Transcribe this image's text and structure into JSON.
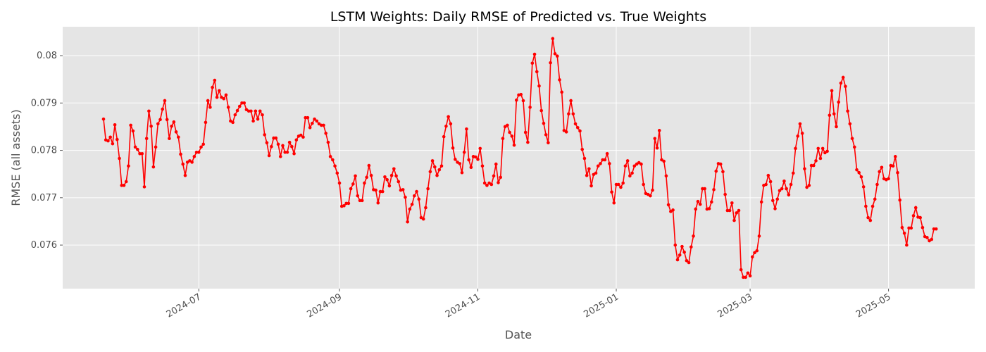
{
  "chart_data": {
    "type": "line",
    "title": "LSTM Weights: Daily RMSE of Predicted vs. True Weights",
    "x_label": "Date",
    "y_label": "RMSE (all assets)",
    "color": "#ff0000",
    "grid": true,
    "xlim": [
      19845,
      20247
    ],
    "xticks": [
      {
        "value": 19905,
        "label": "2024-07"
      },
      {
        "value": 19967,
        "label": "2024-09"
      },
      {
        "value": 20028,
        "label": "2024-11"
      },
      {
        "value": 20089,
        "label": "2025-01"
      },
      {
        "value": 20148,
        "label": "2025-03"
      },
      {
        "value": 20209,
        "label": "2025-05"
      }
    ],
    "ylim": [
      0.07508,
      0.08061
    ],
    "yticks": [
      0.076,
      0.077,
      0.078,
      0.079,
      0.08
    ],
    "x": [
      19863,
      19864,
      19865,
      19866,
      19867,
      19868,
      19869,
      19870,
      19871,
      19872,
      19873,
      19874,
      19875,
      19876,
      19877,
      19878,
      19879,
      19880,
      19881,
      19882,
      19883,
      19884,
      19885,
      19886,
      19887,
      19888,
      19889,
      19890,
      19891,
      19892,
      19893,
      19894,
      19895,
      19896,
      19897,
      19898,
      19899,
      19900,
      19901,
      19902,
      19903,
      19904,
      19905,
      19906,
      19907,
      19908,
      19909,
      19910,
      19911,
      19912,
      19913,
      19914,
      19915,
      19916,
      19917,
      19918,
      19919,
      19920,
      19921,
      19922,
      19923,
      19924,
      19925,
      19926,
      19927,
      19928,
      19929,
      19930,
      19931,
      19932,
      19933,
      19934,
      19935,
      19936,
      19937,
      19938,
      19939,
      19940,
      19941,
      19942,
      19943,
      19944,
      19945,
      19946,
      19947,
      19948,
      19949,
      19950,
      19951,
      19952,
      19953,
      19954,
      19955,
      19956,
      19957,
      19958,
      19959,
      19960,
      19961,
      19962,
      19963,
      19964,
      19965,
      19966,
      19967,
      19968,
      19969,
      19970,
      19971,
      19972,
      19973,
      19974,
      19975,
      19976,
      19977,
      19978,
      19979,
      19980,
      19981,
      19982,
      19983,
      19984,
      19985,
      19986,
      19987,
      19988,
      19989,
      19990,
      19991,
      19992,
      19993,
      19994,
      19995,
      19996,
      19997,
      19998,
      19999,
      20000,
      20001,
      20002,
      20003,
      20004,
      20005,
      20006,
      20007,
      20008,
      20009,
      20010,
      20011,
      20012,
      20013,
      20014,
      20015,
      20016,
      20017,
      20018,
      20019,
      20020,
      20021,
      20022,
      20023,
      20024,
      20025,
      20026,
      20027,
      20028,
      20029,
      20030,
      20031,
      20032,
      20033,
      20034,
      20035,
      20036,
      20037,
      20038,
      20039,
      20040,
      20041,
      20042,
      20043,
      20044,
      20045,
      20046,
      20047,
      20048,
      20049,
      20050,
      20051,
      20052,
      20053,
      20054,
      20055,
      20056,
      20057,
      20058,
      20059,
      20060,
      20061,
      20062,
      20063,
      20064,
      20065,
      20066,
      20067,
      20068,
      20069,
      20070,
      20071,
      20072,
      20073,
      20074,
      20075,
      20076,
      20077,
      20078,
      20079,
      20080,
      20081,
      20082,
      20083,
      20084,
      20085,
      20086,
      20087,
      20088,
      20089,
      20090,
      20091,
      20092,
      20093,
      20094,
      20095,
      20096,
      20097,
      20098,
      20099,
      20100,
      20101,
      20102,
      20103,
      20104,
      20105,
      20106,
      20107,
      20108,
      20109,
      20110,
      20111,
      20112,
      20113,
      20114,
      20115,
      20116,
      20117,
      20118,
      20119,
      20120,
      20121,
      20122,
      20123,
      20124,
      20125,
      20126,
      20127,
      20128,
      20129,
      20130,
      20131,
      20132,
      20133,
      20134,
      20135,
      20136,
      20137,
      20138,
      20139,
      20140,
      20141,
      20142,
      20143,
      20144,
      20145,
      20146,
      20147,
      20148,
      20149,
      20150,
      20151,
      20152,
      20153,
      20154,
      20155,
      20156,
      20157,
      20158,
      20159,
      20160,
      20161,
      20162,
      20163,
      20164,
      20165,
      20166,
      20167,
      20168,
      20169,
      20170,
      20171,
      20172,
      20173,
      20174,
      20175,
      20176,
      20177,
      20178,
      20179,
      20180,
      20181,
      20182,
      20183,
      20184,
      20185,
      20186,
      20187,
      20188,
      20189,
      20190,
      20191,
      20192,
      20193,
      20194,
      20195,
      20196,
      20197,
      20198,
      20199,
      20200,
      20201,
      20202,
      20203,
      20204,
      20205,
      20206,
      20207,
      20208,
      20209,
      20210,
      20211,
      20212,
      20213,
      20214,
      20215,
      20216,
      20217,
      20218,
      20219,
      20220,
      20221,
      20222,
      20223,
      20224,
      20225,
      20226,
      20227,
      20228,
      20229,
      20230
    ],
    "values": [
      0.07866,
      0.07822,
      0.0782,
      0.07828,
      0.07814,
      0.07854,
      0.07823,
      0.07783,
      0.07726,
      0.07726,
      0.07734,
      0.07767,
      0.07853,
      0.07841,
      0.07807,
      0.07802,
      0.07793,
      0.07793,
      0.07723,
      0.07825,
      0.07883,
      0.07851,
      0.07765,
      0.07807,
      0.07856,
      0.07865,
      0.07887,
      0.07905,
      0.07865,
      0.07825,
      0.07851,
      0.0786,
      0.07839,
      0.07828,
      0.07792,
      0.07771,
      0.07747,
      0.07775,
      0.07778,
      0.07775,
      0.07787,
      0.07796,
      0.07796,
      0.07807,
      0.07813,
      0.07859,
      0.07905,
      0.07891,
      0.07933,
      0.07948,
      0.07912,
      0.07926,
      0.07912,
      0.07909,
      0.07917,
      0.07891,
      0.07862,
      0.07859,
      0.07875,
      0.07884,
      0.07893,
      0.079,
      0.079,
      0.07886,
      0.07883,
      0.07883,
      0.07862,
      0.07883,
      0.07866,
      0.07883,
      0.07875,
      0.07833,
      0.07816,
      0.07789,
      0.07808,
      0.07826,
      0.07826,
      0.07813,
      0.07787,
      0.0781,
      0.07796,
      0.07796,
      0.07817,
      0.07808,
      0.07793,
      0.07822,
      0.0783,
      0.07832,
      0.07828,
      0.07869,
      0.07869,
      0.07848,
      0.07857,
      0.07866,
      0.07862,
      0.07856,
      0.07853,
      0.07853,
      0.07836,
      0.07817,
      0.07787,
      0.0778,
      0.07767,
      0.07752,
      0.07731,
      0.07682,
      0.07683,
      0.07688,
      0.07688,
      0.07719,
      0.07729,
      0.07746,
      0.07704,
      0.07694,
      0.07694,
      0.07731,
      0.07743,
      0.07768,
      0.07747,
      0.07717,
      0.07716,
      0.07689,
      0.07713,
      0.07713,
      0.07744,
      0.07738,
      0.07725,
      0.07747,
      0.07761,
      0.07746,
      0.07734,
      0.07716,
      0.07717,
      0.07701,
      0.07649,
      0.07676,
      0.07686,
      0.07704,
      0.07713,
      0.07697,
      0.07658,
      0.07655,
      0.07679,
      0.07719,
      0.07755,
      0.07778,
      0.07765,
      0.07747,
      0.07759,
      0.07767,
      0.07829,
      0.07851,
      0.07871,
      0.07856,
      0.07805,
      0.07781,
      0.07775,
      0.07772,
      0.07753,
      0.07796,
      0.07845,
      0.0778,
      0.07764,
      0.07787,
      0.07786,
      0.07781,
      0.07804,
      0.07767,
      0.07731,
      0.07726,
      0.07731,
      0.07728,
      0.07746,
      0.07771,
      0.07732,
      0.07743,
      0.07825,
      0.0785,
      0.07853,
      0.07838,
      0.0783,
      0.07811,
      0.07906,
      0.07917,
      0.07918,
      0.07905,
      0.07838,
      0.07817,
      0.07891,
      0.07984,
      0.08003,
      0.07966,
      0.07936,
      0.07884,
      0.07857,
      0.07833,
      0.07816,
      0.07985,
      0.08036,
      0.08004,
      0.07999,
      0.07949,
      0.07923,
      0.07842,
      0.07839,
      0.07877,
      0.07905,
      0.07877,
      0.07856,
      0.07848,
      0.07841,
      0.07802,
      0.07783,
      0.07747,
      0.07761,
      0.07725,
      0.07749,
      0.07752,
      0.07767,
      0.07772,
      0.0778,
      0.0778,
      0.07793,
      0.07772,
      0.07712,
      0.07689,
      0.07728,
      0.07728,
      0.07722,
      0.07731,
      0.07767,
      0.07778,
      0.07746,
      0.07752,
      0.07767,
      0.07771,
      0.07774,
      0.07771,
      0.07728,
      0.07709,
      0.07707,
      0.07704,
      0.07716,
      0.07825,
      0.07805,
      0.07842,
      0.0778,
      0.07777,
      0.07746,
      0.07685,
      0.07671,
      0.07674,
      0.076,
      0.07569,
      0.07579,
      0.07597,
      0.07585,
      0.07567,
      0.07563,
      0.07596,
      0.07619,
      0.07676,
      0.07692,
      0.07686,
      0.07719,
      0.07719,
      0.07676,
      0.07677,
      0.07691,
      0.07717,
      0.07756,
      0.07772,
      0.07771,
      0.07755,
      0.07707,
      0.07673,
      0.07673,
      0.07689,
      0.07652,
      0.07668,
      0.07673,
      0.07548,
      0.07532,
      0.07532,
      0.07541,
      0.07535,
      0.07575,
      0.07584,
      0.07588,
      0.07619,
      0.07691,
      0.07726,
      0.07728,
      0.07747,
      0.07734,
      0.07694,
      0.07677,
      0.07697,
      0.07715,
      0.07719,
      0.07735,
      0.07719,
      0.07706,
      0.07728,
      0.07752,
      0.07804,
      0.0783,
      0.07856,
      0.07836,
      0.07761,
      0.07722,
      0.07726,
      0.07768,
      0.07768,
      0.07778,
      0.07804,
      0.07783,
      0.07804,
      0.07795,
      0.07798,
      0.07874,
      0.07926,
      0.07877,
      0.0785,
      0.07902,
      0.07942,
      0.07954,
      0.07935,
      0.07883,
      0.07856,
      0.07825,
      0.07807,
      0.07759,
      0.07753,
      0.07744,
      0.07723,
      0.07682,
      0.07658,
      0.07652,
      0.07682,
      0.07697,
      0.07728,
      0.07755,
      0.07764,
      0.0774,
      0.07738,
      0.0774,
      0.07768,
      0.07767,
      0.07787,
      0.07753,
      0.07695,
      0.07637,
      0.07625,
      0.076,
      0.07636,
      0.07636,
      0.07662,
      0.07679,
      0.07659,
      0.07658,
      0.07637,
      0.07618,
      0.07616,
      0.07609,
      0.07612,
      0.07634,
      0.07634
    ]
  }
}
